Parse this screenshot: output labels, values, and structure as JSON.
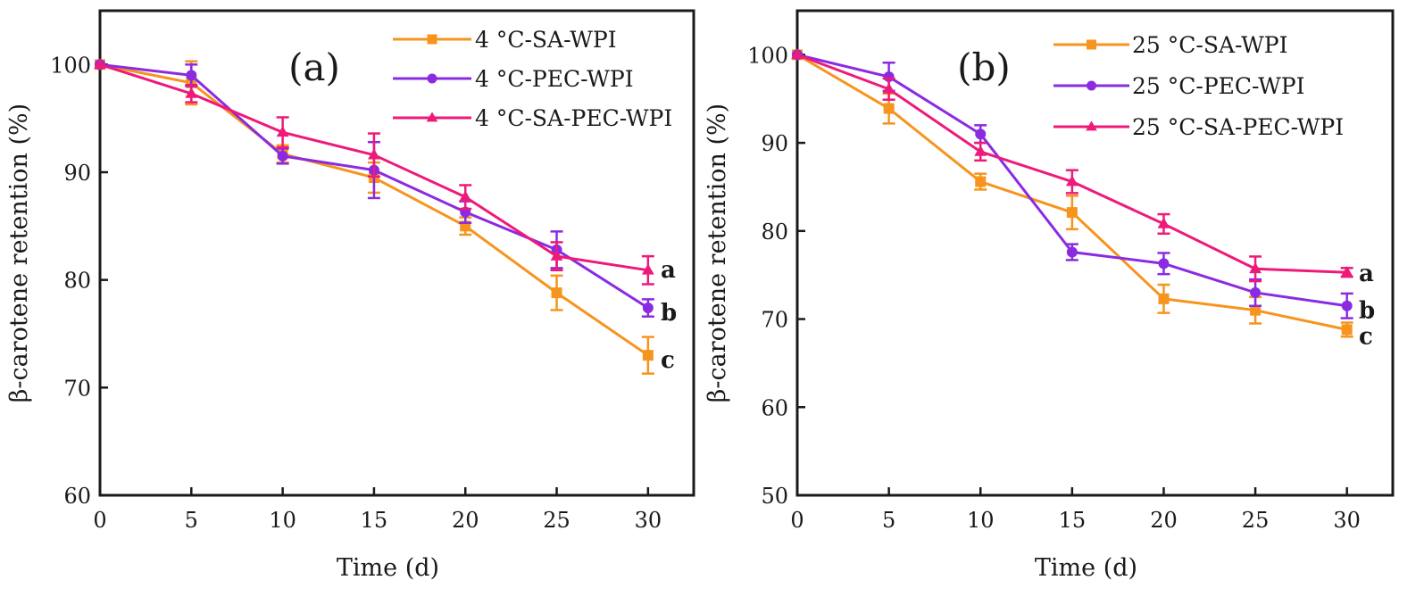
{
  "chart_data": [
    {
      "type": "line",
      "panel_label": "(a)",
      "xlabel": "Time (d)",
      "ylabel": "β-carotene retention (%)",
      "xlim": [
        0,
        32.5
      ],
      "ylim": [
        60,
        105
      ],
      "x_ticks": [
        0,
        5,
        10,
        15,
        20,
        25,
        30
      ],
      "x_tick_labels": [
        "0",
        "5",
        "10",
        "15",
        "20",
        "25",
        "30"
      ],
      "y_ticks": [
        60,
        70,
        80,
        90,
        100
      ],
      "y_tick_labels": [
        "60",
        "70",
        "80",
        "90",
        "100"
      ],
      "legend_position": "top-right",
      "grid": false,
      "x": [
        0,
        5,
        10,
        15,
        20,
        25,
        30
      ],
      "series": [
        {
          "name": "4 °C-SA-WPI",
          "color": "#f7941d",
          "marker": "square",
          "values": [
            100,
            98.3,
            91.7,
            89.5,
            85.0,
            78.8,
            73.0
          ],
          "errors": [
            0,
            2.0,
            0.8,
            1.4,
            0.8,
            1.6,
            1.7
          ]
        },
        {
          "name": "4 °C-PEC-WPI",
          "color": "#8a2be2",
          "marker": "circle",
          "values": [
            100,
            99.0,
            91.5,
            90.2,
            86.3,
            82.8,
            77.4
          ],
          "errors": [
            0,
            1.0,
            0.7,
            2.6,
            1.0,
            1.7,
            0.8
          ]
        },
        {
          "name": "4 °C-SA-PEC-WPI",
          "color": "#ee1a7a",
          "marker": "triangle",
          "values": [
            100,
            97.3,
            93.7,
            91.6,
            87.7,
            82.2,
            80.9
          ],
          "errors": [
            0,
            0.8,
            1.4,
            2.0,
            1.1,
            1.3,
            1.3
          ]
        }
      ],
      "annotations": [
        {
          "text": "a",
          "series": "4 °C-SA-PEC-WPI"
        },
        {
          "text": "b",
          "series": "4 °C-PEC-WPI"
        },
        {
          "text": "c",
          "series": "4 °C-SA-WPI"
        }
      ]
    },
    {
      "type": "line",
      "panel_label": "(b)",
      "xlabel": "Time (d)",
      "ylabel": "β-carotene retention (%)",
      "xlim": [
        0,
        32.5
      ],
      "ylim": [
        50,
        105
      ],
      "x_ticks": [
        0,
        5,
        10,
        15,
        20,
        25,
        30
      ],
      "x_tick_labels": [
        "0",
        "5",
        "10",
        "15",
        "20",
        "25",
        "30"
      ],
      "y_ticks": [
        50,
        60,
        70,
        80,
        90,
        100
      ],
      "y_tick_labels": [
        "50",
        "60",
        "70",
        "80",
        "90",
        "100"
      ],
      "legend_position": "top-right",
      "grid": false,
      "x": [
        0,
        5,
        10,
        15,
        20,
        25,
        30
      ],
      "series": [
        {
          "name": "25 °C-SA-WPI",
          "color": "#f7941d",
          "marker": "square",
          "values": [
            100,
            93.9,
            85.6,
            82.1,
            72.3,
            71.0,
            68.8
          ],
          "errors": [
            0,
            1.7,
            0.9,
            1.9,
            1.6,
            1.5,
            0.8
          ]
        },
        {
          "name": "25 °C-PEC-WPI",
          "color": "#8a2be2",
          "marker": "circle",
          "values": [
            100,
            97.5,
            91.0,
            77.6,
            76.3,
            73.0,
            71.5
          ],
          "errors": [
            0,
            1.6,
            1.0,
            0.9,
            1.2,
            1.5,
            1.4
          ]
        },
        {
          "name": "25 °C-SA-PEC-WPI",
          "color": "#ee1a7a",
          "marker": "triangle",
          "values": [
            100,
            96.1,
            89.0,
            85.6,
            80.8,
            75.7,
            75.3
          ],
          "errors": [
            0,
            1.2,
            1.0,
            1.3,
            1.1,
            1.4,
            0.5
          ]
        }
      ],
      "annotations": [
        {
          "text": "a",
          "series": "25 °C-SA-PEC-WPI"
        },
        {
          "text": "b",
          "series": "25 °C-PEC-WPI"
        },
        {
          "text": "c",
          "series": "25 °C-SA-WPI"
        }
      ]
    }
  ]
}
